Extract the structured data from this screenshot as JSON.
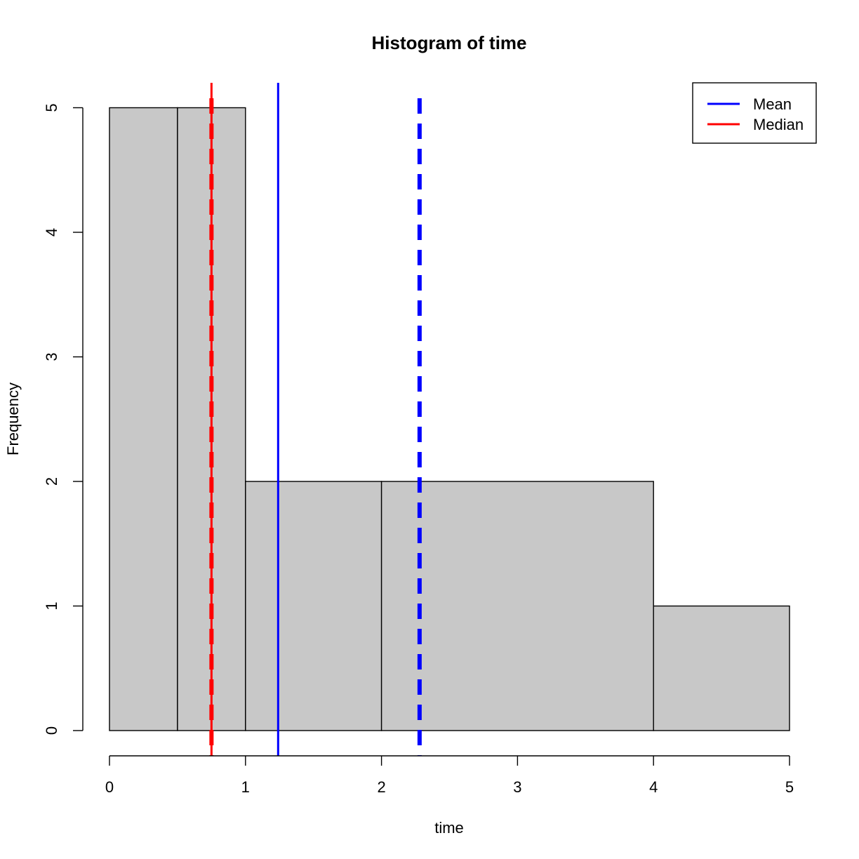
{
  "chart_data": {
    "type": "bar",
    "title": "Histogram of time",
    "xlabel": "time",
    "ylabel": "Frequency",
    "xlim": [
      0,
      5
    ],
    "ylim": [
      0,
      5
    ],
    "x_ticks": [
      "0",
      "1",
      "2",
      "3",
      "4",
      "5"
    ],
    "y_ticks": [
      "0",
      "1",
      "2",
      "3",
      "4",
      "5"
    ],
    "bins": [
      {
        "start": 0,
        "end": 0.5,
        "count": 5
      },
      {
        "start": 0.5,
        "end": 1,
        "count": 5
      },
      {
        "start": 1,
        "end": 2,
        "count": 2
      },
      {
        "start": 2,
        "end": 4,
        "count": 2
      },
      {
        "start": 4,
        "end": 5,
        "count": 1
      }
    ],
    "reference_lines": [
      {
        "name": "mean-solid",
        "x": 1.24,
        "color": "#0000ff",
        "style": "solid"
      },
      {
        "name": "mean-dashed",
        "x": 2.28,
        "color": "#0000ff",
        "style": "dashed"
      },
      {
        "name": "median-solid",
        "x": 0.75,
        "color": "#ff0000",
        "style": "solid"
      },
      {
        "name": "median-dashed",
        "x": 0.75,
        "color": "#ff0000",
        "style": "dashed"
      }
    ],
    "bar_fill": "#c8c8c8",
    "grid": false,
    "legend": {
      "position": "top-right",
      "entries": [
        {
          "label": "Mean",
          "color": "#0000ff"
        },
        {
          "label": "Median",
          "color": "#ff0000"
        }
      ]
    }
  }
}
